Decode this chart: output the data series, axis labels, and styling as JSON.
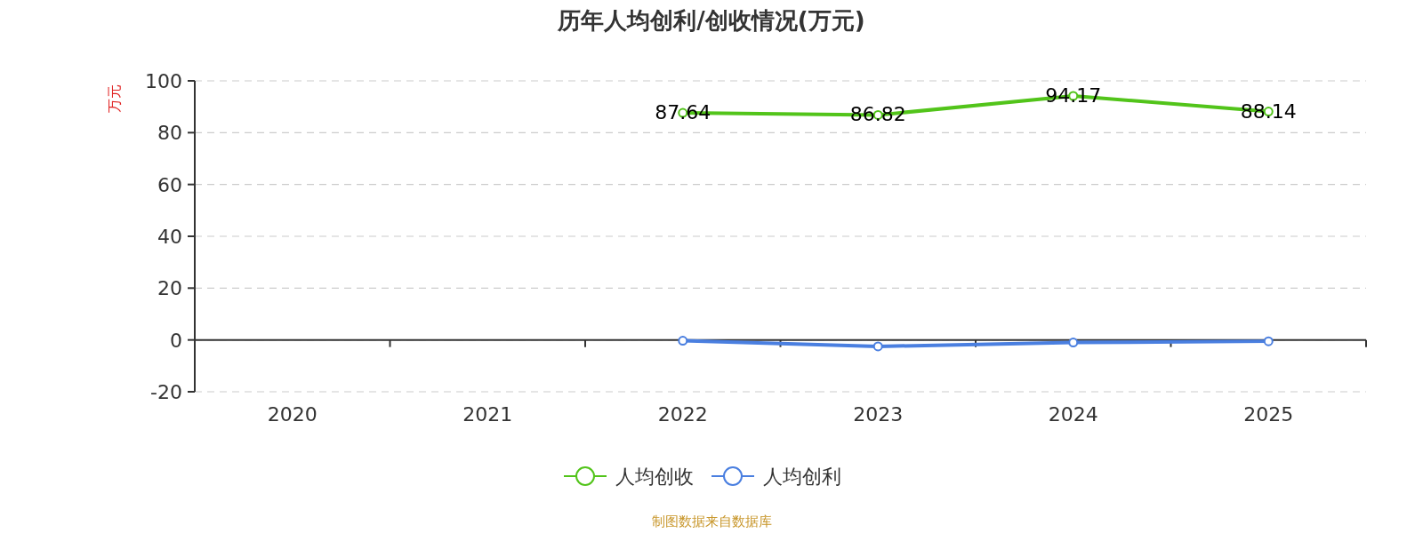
{
  "chart_data": {
    "type": "line",
    "title": "历年人均创利/创收情况(万元)",
    "ylabel": "万元",
    "categories": [
      "2020",
      "2021",
      "2022",
      "2023",
      "2024",
      "2025"
    ],
    "series": [
      {
        "name": "人均创收",
        "color": "#52c41a",
        "values": [
          null,
          null,
          87.64,
          86.82,
          94.17,
          88.14
        ],
        "value_labels": [
          null,
          null,
          "87.64",
          "86.82",
          "94.17",
          "88.14"
        ]
      },
      {
        "name": "人均创利",
        "color": "#4a7fe0",
        "values": [
          null,
          null,
          -0.3,
          -2.5,
          -1.0,
          -0.5
        ]
      }
    ],
    "ylim": [
      -20,
      100
    ],
    "yticks": [
      -20,
      0,
      20,
      40,
      60,
      80,
      100
    ],
    "grid": "y",
    "legend": "bottom",
    "marker": "circle",
    "line_style": "solid",
    "annotations": [
      "制图数据来自数据库"
    ]
  }
}
